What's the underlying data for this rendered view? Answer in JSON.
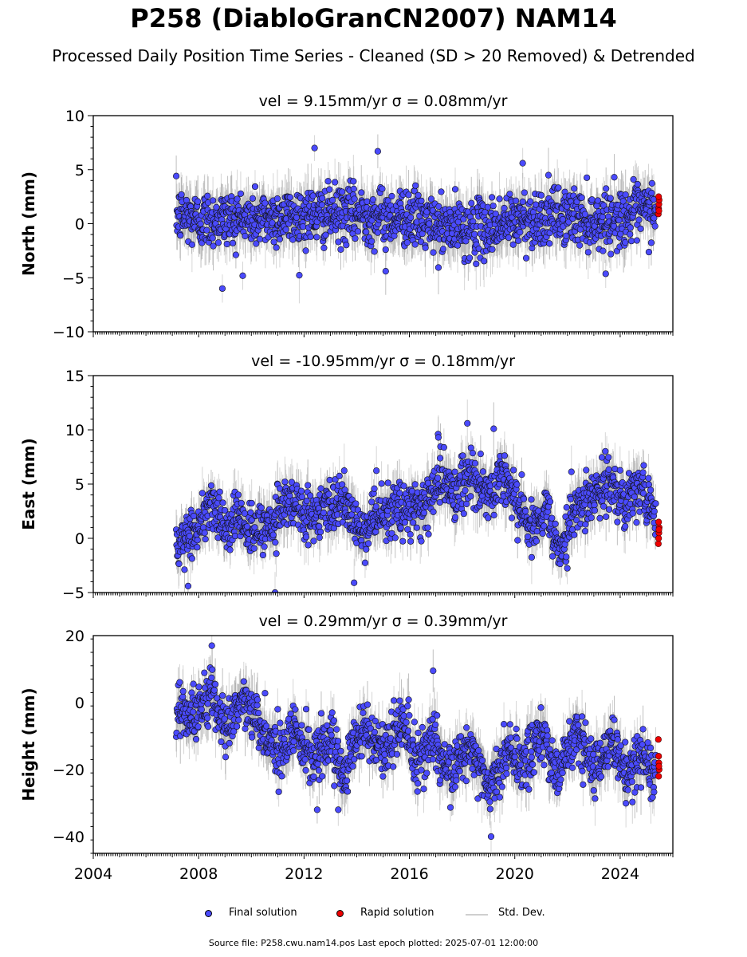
{
  "header": {
    "title": "P258 (DiabloGranCN2007) NAM14",
    "subtitle": "Processed Daily Position Time Series - Cleaned (SD > 20 Removed) & Detrended"
  },
  "legend": {
    "final_label": "Final solution",
    "rapid_label": "Rapid solution",
    "sd_label": "Std. Dev."
  },
  "footer": {
    "text": "Source file: P258.cwu.nam14.pos  Last epoch plotted: 2025-07-01 12:00:00"
  },
  "colors": {
    "final": "#4a4afc",
    "rapid": "#ee0000",
    "sd": "#b4b4b4"
  },
  "chart_data": [
    {
      "type": "scatter",
      "title": "vel = 9.15mm/yr   σ = 0.08mm/yr",
      "ylabel": "North (mm)",
      "xlim": [
        2004,
        2026
      ],
      "ylim": [
        -10,
        10
      ],
      "yticks": [
        -10,
        -5,
        0,
        5,
        10
      ],
      "ytick_labels": [
        "−10",
        "−5",
        "0",
        "5",
        "10"
      ],
      "xticks": [
        2004,
        2008,
        2012,
        2016,
        2020,
        2024
      ],
      "xtick_labels": [],
      "data_start": 2007.15,
      "data_end": 2025.35,
      "trend": [
        [
          2007.2,
          0.8
        ],
        [
          2008.0,
          0.3
        ],
        [
          2009.0,
          0.5
        ],
        [
          2010.0,
          0.4
        ],
        [
          2011.0,
          0.6
        ],
        [
          2012.0,
          0.7
        ],
        [
          2013.0,
          0.8
        ],
        [
          2014.0,
          0.9
        ],
        [
          2015.0,
          0.6
        ],
        [
          2016.0,
          0.7
        ],
        [
          2017.0,
          -0.3
        ],
        [
          2018.0,
          -0.5
        ],
        [
          2019.0,
          -0.4
        ],
        [
          2020.0,
          0.3
        ],
        [
          2021.0,
          0.5
        ],
        [
          2022.0,
          0.8
        ],
        [
          2023.0,
          0.2
        ],
        [
          2024.0,
          0.6
        ],
        [
          2025.0,
          1.2
        ],
        [
          2025.35,
          1.5
        ]
      ],
      "scatter_sd": 1.3,
      "outliers": [
        [
          2012.4,
          7.0
        ],
        [
          2014.8,
          6.7
        ],
        [
          2008.9,
          -6.0
        ],
        [
          2020.3,
          5.6
        ],
        [
          2015.1,
          -4.4
        ]
      ],
      "rapid": [
        [
          2025.45,
          0.9
        ],
        [
          2025.46,
          1.4
        ],
        [
          2025.47,
          1.8
        ],
        [
          2025.48,
          2.2
        ],
        [
          2025.46,
          2.5
        ],
        [
          2025.47,
          1.2
        ]
      ]
    },
    {
      "type": "scatter",
      "title": "vel = -10.95mm/yr   σ = 0.18mm/yr",
      "ylabel": "East (mm)",
      "xlim": [
        2004,
        2026
      ],
      "ylim": [
        -5,
        15
      ],
      "yticks": [
        -5,
        0,
        5,
        10,
        15
      ],
      "ytick_labels": [
        "−5",
        "0",
        "5",
        "10",
        "15"
      ],
      "xticks": [
        2004,
        2008,
        2012,
        2016,
        2020,
        2024
      ],
      "xtick_labels": [],
      "data_start": 2007.15,
      "data_end": 2025.35,
      "trend": [
        [
          2007.2,
          -0.5
        ],
        [
          2007.8,
          0.5
        ],
        [
          2008.5,
          3.5
        ],
        [
          2009.0,
          0.8
        ],
        [
          2009.5,
          2.0
        ],
        [
          2010.0,
          0.5
        ],
        [
          2010.8,
          1.5
        ],
        [
          2011.5,
          3.5
        ],
        [
          2012.0,
          2.0
        ],
        [
          2012.8,
          2.5
        ],
        [
          2013.5,
          3.5
        ],
        [
          2014.2,
          0.5
        ],
        [
          2015.0,
          2.0
        ],
        [
          2015.8,
          3.0
        ],
        [
          2016.5,
          2.5
        ],
        [
          2017.2,
          5.5
        ],
        [
          2017.8,
          4.0
        ],
        [
          2018.3,
          6.0
        ],
        [
          2019.0,
          3.5
        ],
        [
          2019.5,
          6.0
        ],
        [
          2020.0,
          4.0
        ],
        [
          2020.6,
          1.0
        ],
        [
          2021.2,
          2.5
        ],
        [
          2021.7,
          -1.0
        ],
        [
          2022.3,
          2.5
        ],
        [
          2023.0,
          4.0
        ],
        [
          2023.6,
          5.0
        ],
        [
          2024.2,
          3.5
        ],
        [
          2024.8,
          4.5
        ],
        [
          2025.35,
          2.0
        ]
      ],
      "scatter_sd": 1.2,
      "outliers": [
        [
          2018.2,
          10.6
        ],
        [
          2019.2,
          10.1
        ],
        [
          2017.1,
          9.3
        ],
        [
          2010.9,
          -5.0
        ],
        [
          2007.6,
          -4.4
        ],
        [
          2013.9,
          -4.1
        ]
      ],
      "rapid": [
        [
          2025.45,
          -0.5
        ],
        [
          2025.46,
          0.0
        ],
        [
          2025.47,
          0.5
        ],
        [
          2025.48,
          1.0
        ],
        [
          2025.46,
          1.5
        ],
        [
          2025.47,
          0.8
        ]
      ]
    },
    {
      "type": "scatter",
      "title": "vel = 0.29mm/yr   σ = 0.39mm/yr",
      "ylabel": "Height (mm)",
      "xlim": [
        2004,
        2026
      ],
      "ylim": [
        -45,
        20
      ],
      "yticks": [
        -40,
        -20,
        0,
        20
      ],
      "ytick_labels": [
        "−40",
        "−20",
        "0",
        "20"
      ],
      "xticks": [
        2004,
        2008,
        2012,
        2016,
        2020,
        2024
      ],
      "xtick_labels": [
        "2004",
        "2008",
        "2012",
        "2016",
        "2020",
        "2024"
      ],
      "data_start": 2007.15,
      "data_end": 2025.35,
      "trend": [
        [
          2007.2,
          -2
        ],
        [
          2007.8,
          -5
        ],
        [
          2008.5,
          3
        ],
        [
          2009.0,
          -8
        ],
        [
          2009.7,
          2
        ],
        [
          2010.3,
          -8
        ],
        [
          2011.0,
          -15
        ],
        [
          2011.7,
          -8
        ],
        [
          2012.3,
          -18
        ],
        [
          2013.0,
          -10
        ],
        [
          2013.5,
          -22
        ],
        [
          2014.2,
          -8
        ],
        [
          2015.0,
          -15
        ],
        [
          2015.7,
          -5
        ],
        [
          2016.3,
          -20
        ],
        [
          2016.9,
          -10
        ],
        [
          2017.5,
          -22
        ],
        [
          2018.2,
          -12
        ],
        [
          2019.0,
          -25
        ],
        [
          2019.7,
          -14
        ],
        [
          2020.4,
          -18
        ],
        [
          2021.0,
          -10
        ],
        [
          2021.6,
          -22
        ],
        [
          2022.3,
          -8
        ],
        [
          2023.0,
          -20
        ],
        [
          2023.6,
          -12
        ],
        [
          2024.3,
          -22
        ],
        [
          2024.8,
          -14
        ],
        [
          2025.35,
          -22
        ]
      ],
      "scatter_sd": 4.0,
      "outliers": [
        [
          2008.5,
          17.0
        ],
        [
          2012.5,
          -32.0
        ],
        [
          2019.1,
          -40.0
        ],
        [
          2013.3,
          -32.0
        ],
        [
          2016.9,
          9.5
        ]
      ],
      "rapid": [
        [
          2025.45,
          -11
        ],
        [
          2025.46,
          -16
        ],
        [
          2025.47,
          -18
        ],
        [
          2025.48,
          -20
        ],
        [
          2025.46,
          -22
        ],
        [
          2025.47,
          -19
        ]
      ]
    }
  ]
}
